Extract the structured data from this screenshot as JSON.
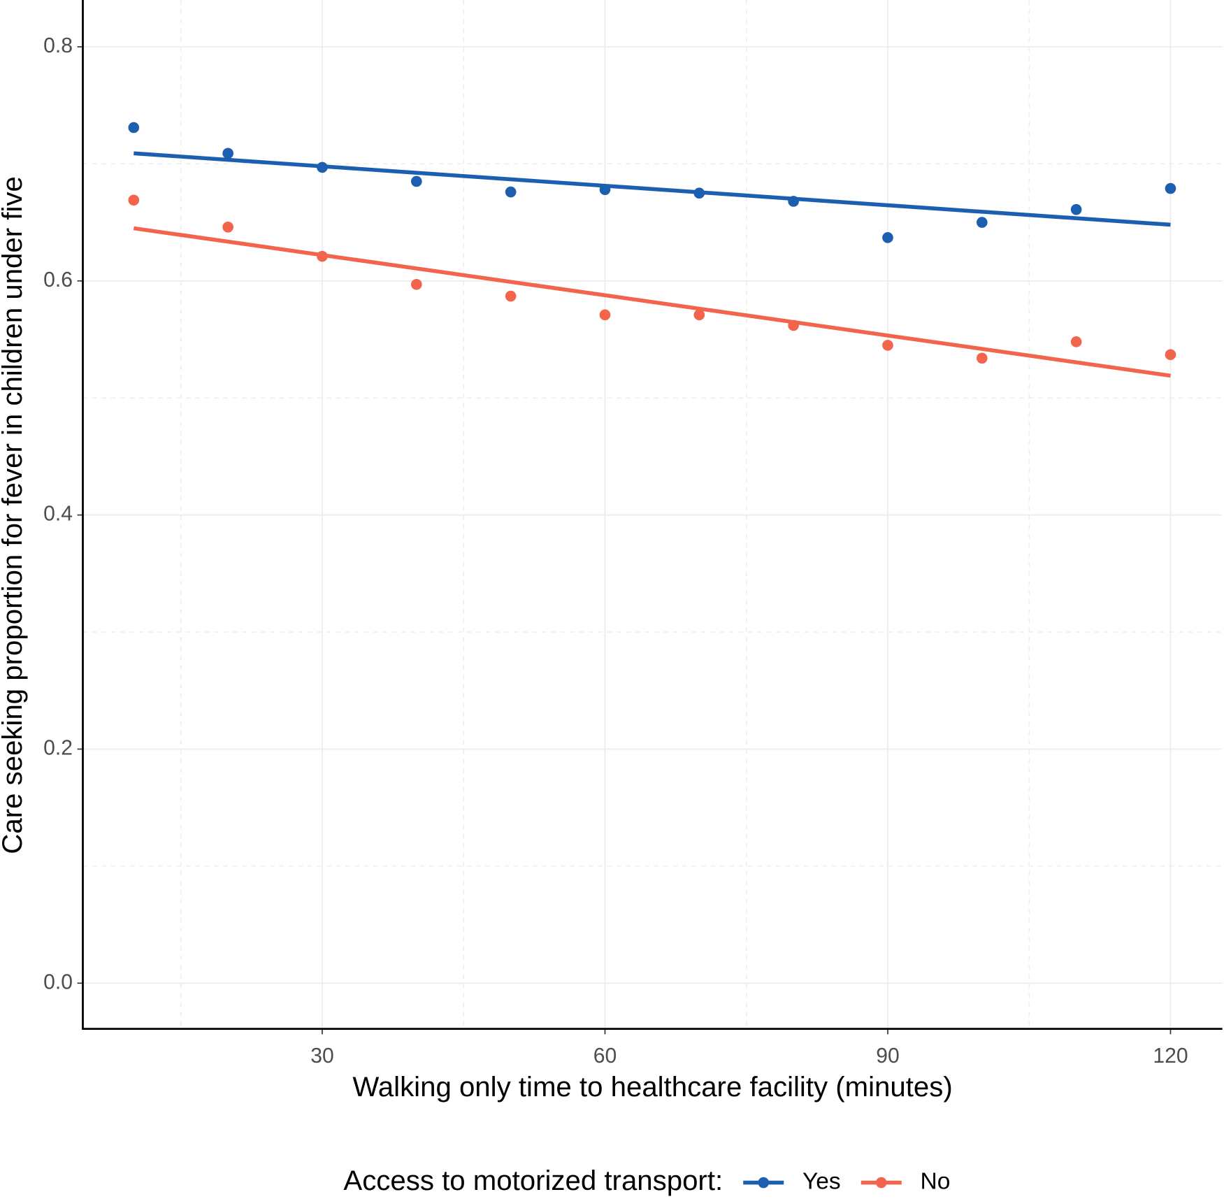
{
  "chart_data": {
    "type": "scatter",
    "x_label": "Walking only time to healthcare facility (minutes)",
    "y_label": "Care seeking proportion for fever in children under five",
    "legend_title": "Access to motorized transport:",
    "legend_position": "bottom",
    "xlim": [
      4.6,
      125.5
    ],
    "ylim": [
      -0.039,
      0.84
    ],
    "xticks": [
      30,
      60,
      90,
      120
    ],
    "yticks": [
      {
        "value": 0,
        "label": "0.0"
      },
      0.2,
      0.4,
      0.6,
      0.8
    ],
    "x_minor": [
      15,
      45,
      75,
      105
    ],
    "y_minor": [
      0.1,
      0.3,
      0.5,
      0.7
    ],
    "grid": true,
    "x": [
      10,
      20,
      30,
      40,
      50,
      60,
      70,
      80,
      90,
      100,
      110,
      120
    ],
    "series": [
      {
        "name": "Yes",
        "color": "#1c5fb0",
        "values": [
          0.731,
          0.709,
          0.697,
          0.685,
          0.676,
          0.678,
          0.675,
          0.668,
          0.637,
          0.65,
          0.661,
          0.679
        ],
        "fit": {
          "x": [
            10,
            120
          ],
          "values": [
            0.709,
            0.648
          ]
        }
      },
      {
        "name": "No",
        "color": "#f2654c",
        "values": [
          0.669,
          0.646,
          0.621,
          0.597,
          0.587,
          0.571,
          0.571,
          0.562,
          0.545,
          0.534,
          0.548,
          0.537
        ],
        "fit": {
          "x": [
            10,
            120
          ],
          "values": [
            0.645,
            0.519
          ]
        }
      }
    ]
  }
}
